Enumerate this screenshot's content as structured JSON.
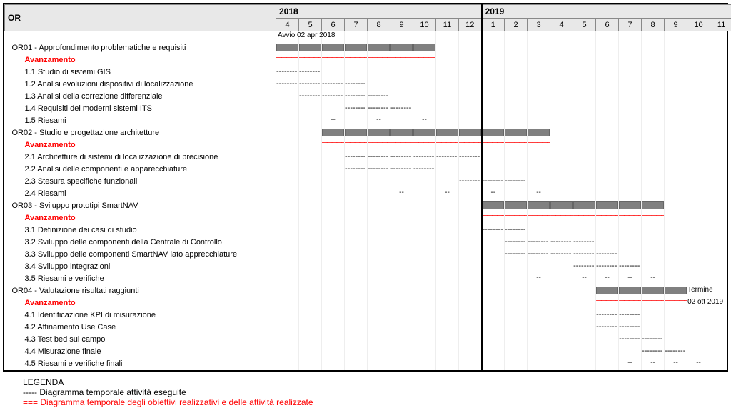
{
  "header": {
    "or_label": "OR",
    "years": [
      {
        "label": "2018",
        "months": [
          "4",
          "5",
          "6",
          "7",
          "8",
          "9",
          "10",
          "11",
          "12"
        ]
      },
      {
        "label": "2019",
        "months": [
          "1",
          "2",
          "3",
          "4",
          "5",
          "6",
          "7",
          "8",
          "9",
          "10",
          "11"
        ]
      }
    ]
  },
  "timeline": {
    "total_months": 20,
    "year_divider_after_col": 9,
    "start_note": "Avvio 02 apr 2018",
    "end_note_label": "Termine",
    "end_note_date": "02 ott 2019"
  },
  "colors": {
    "header_bg": "#e8e8e8",
    "border": "#888888",
    "outer_border": "#000000",
    "grey_bar": "#808080",
    "red": "#ff0000",
    "text": "#000000",
    "gridline": "#eeeeee"
  },
  "legend": {
    "title": "LEGENDA",
    "l1": "-----  Diagramma temporale attività eseguite",
    "l2": "=== Diagramma temporale degli obiettivi realizzativi e delle attività realizzate"
  },
  "rows": [
    {
      "type": "note",
      "label": "",
      "note": "start"
    },
    {
      "type": "head",
      "label": "OR01 - Approfondimento problematiche e requisiti",
      "bar": "grey",
      "start": 0,
      "end": 7
    },
    {
      "type": "adv",
      "label": "Avanzamento",
      "bar": "red",
      "start": 0,
      "end": 7
    },
    {
      "type": "sub",
      "label": "1.1 Studio di sistemi GIS",
      "bar": "dash",
      "start": 0,
      "end": 2
    },
    {
      "type": "sub",
      "label": "1.2 Analisi evoluzioni dispositivi di localizzazione",
      "bar": "dash",
      "start": 0,
      "end": 4
    },
    {
      "type": "sub",
      "label": "1.3 Analisi della correzione differenziale",
      "bar": "dash",
      "start": 1,
      "end": 5
    },
    {
      "type": "sub",
      "label": "1.4 Requisiti dei moderni sistemi ITS",
      "bar": "dash",
      "start": 3,
      "end": 6
    },
    {
      "type": "sub",
      "label": "1.5 Riesami",
      "bar": "tick",
      "ticks": [
        2,
        4,
        6
      ]
    },
    {
      "type": "head",
      "label": "OR02 - Studio e progettazione architetture",
      "bar": "grey",
      "start": 2,
      "end": 12
    },
    {
      "type": "adv",
      "label": "Avanzamento",
      "bar": "red",
      "start": 2,
      "end": 12
    },
    {
      "type": "sub",
      "label": "2.1 Architetture di sistemi di localizzazione di precisione",
      "bar": "dash",
      "start": 3,
      "end": 9
    },
    {
      "type": "sub",
      "label": "2.2 Analisi delle componenti e apparecchiature",
      "bar": "dash",
      "start": 3,
      "end": 7
    },
    {
      "type": "sub",
      "label": "2.3 Stesura specifiche funzionali",
      "bar": "dash",
      "start": 8,
      "end": 11
    },
    {
      "type": "sub",
      "label": "2.4 Riesami",
      "bar": "tick",
      "ticks": [
        5,
        7,
        9,
        11
      ]
    },
    {
      "type": "head",
      "label": "OR03 - Sviluppo prototipi SmartNAV",
      "bar": "grey",
      "start": 9,
      "end": 17
    },
    {
      "type": "adv",
      "label": "Avanzamento",
      "bar": "red",
      "start": 9,
      "end": 17
    },
    {
      "type": "sub",
      "label": "3.1 Definizione dei casi di studio",
      "bar": "dash",
      "start": 9,
      "end": 11
    },
    {
      "type": "sub",
      "label": "3.2 Sviluppo delle componenti della Centrale di Controllo",
      "bar": "dash",
      "start": 10,
      "end": 14
    },
    {
      "type": "sub",
      "label": "3.3 Sviluppo delle componenti SmartNAV lato apprecchiature",
      "bar": "dash",
      "start": 10,
      "end": 15
    },
    {
      "type": "sub",
      "label": "3.4 Sviluppo integrazioni",
      "bar": "dash",
      "start": 13,
      "end": 16
    },
    {
      "type": "sub",
      "label": "3.5 Riesami e verifiche",
      "bar": "tick",
      "ticks": [
        11,
        13,
        14,
        15,
        16
      ]
    },
    {
      "type": "head",
      "label": "OR04 - Valutazione risultati raggiunti",
      "bar": "grey",
      "start": 14,
      "end": 18,
      "rnote": "label"
    },
    {
      "type": "adv",
      "label": "Avanzamento",
      "bar": "red",
      "start": 14,
      "end": 18,
      "rnote": "date"
    },
    {
      "type": "sub",
      "label": "4.1 Identificazione KPI di misurazione",
      "bar": "dash",
      "start": 14,
      "end": 16
    },
    {
      "type": "sub",
      "label": "4.2 Affinamento Use Case",
      "bar": "dash",
      "start": 14,
      "end": 16
    },
    {
      "type": "sub",
      "label": "4.3 Test bed sul campo",
      "bar": "dash",
      "start": 15,
      "end": 17
    },
    {
      "type": "sub",
      "label": "4.4 Misurazione finale",
      "bar": "dash",
      "start": 16,
      "end": 18
    },
    {
      "type": "sub",
      "label": "4.5 Riesami e verifiche finali",
      "bar": "tick",
      "ticks": [
        15,
        16,
        17,
        18
      ]
    }
  ]
}
